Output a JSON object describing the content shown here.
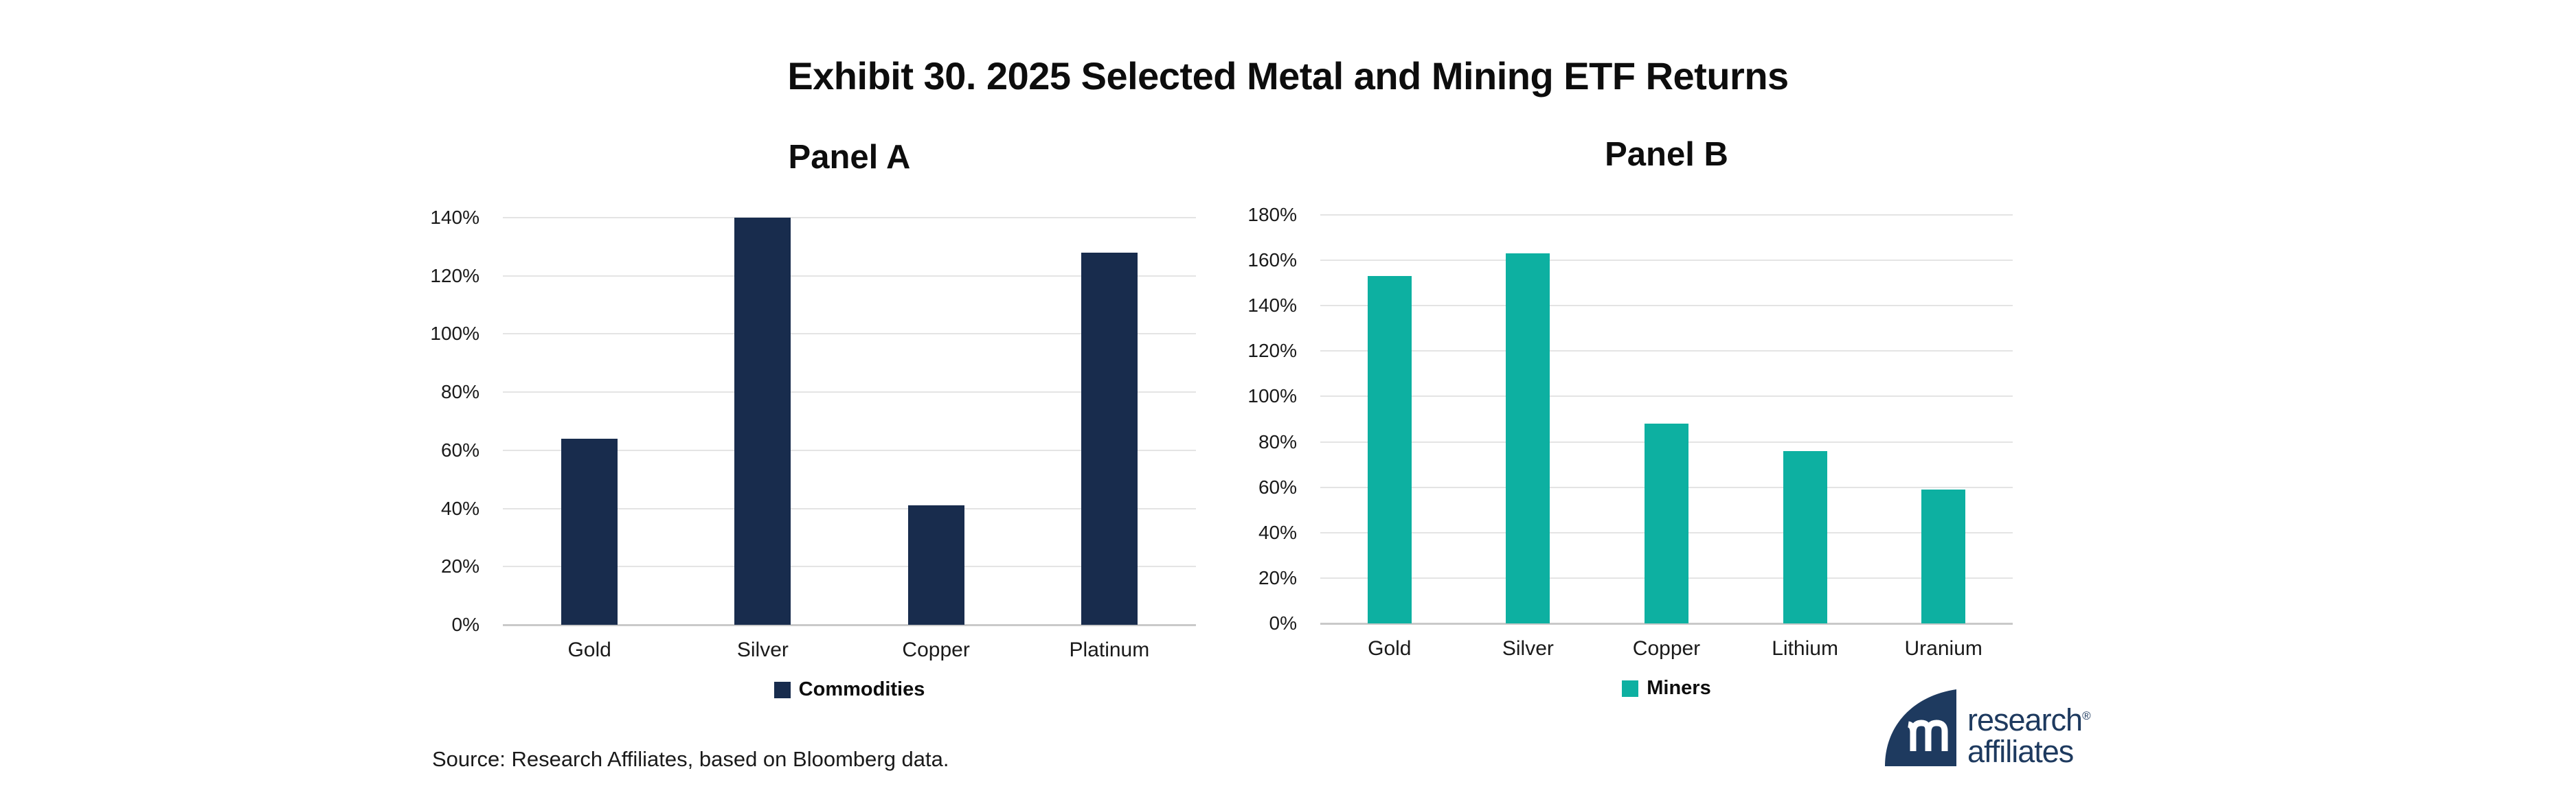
{
  "page": {
    "title": "Exhibit 30. 2025 Selected Metal and Mining ETF Returns",
    "source": "Source: Research Affiliates, based on Bloomberg data."
  },
  "logo": {
    "line1": "research",
    "line2": "affiliates",
    "registered": "®"
  },
  "colors": {
    "navy": "#182c4d",
    "teal": "#0db0a1",
    "logo_navy": "#1e3a5f",
    "gridline": "#e4e4e4",
    "axis_line": "#c9c9c9"
  },
  "chart_data": [
    {
      "type": "bar",
      "panel": "Panel A",
      "categories": [
        "Gold",
        "Silver",
        "Copper",
        "Platinum"
      ],
      "values": [
        64,
        140,
        41,
        128
      ],
      "unit": "%",
      "series_name": "Commodities",
      "ylim": [
        0,
        140
      ],
      "ytick_step": 20,
      "ytick_labels": [
        "140%",
        "120%",
        "100%",
        "80%",
        "60%",
        "40%",
        "20%",
        "0%"
      ],
      "grid": true,
      "legend_position": "bottom",
      "bar_color_key": "navy"
    },
    {
      "type": "bar",
      "panel": "Panel B",
      "categories": [
        "Gold",
        "Silver",
        "Copper",
        "Lithium",
        "Uranium"
      ],
      "values": [
        153,
        163,
        88,
        76,
        59
      ],
      "unit": "%",
      "series_name": "Miners",
      "ylim": [
        0,
        180
      ],
      "ytick_step": 20,
      "ytick_labels": [
        "180%",
        "160%",
        "140%",
        "120%",
        "100%",
        "80%",
        "60%",
        "40%",
        "20%",
        "0%"
      ],
      "grid": true,
      "legend_position": "bottom",
      "bar_color_key": "teal"
    }
  ]
}
